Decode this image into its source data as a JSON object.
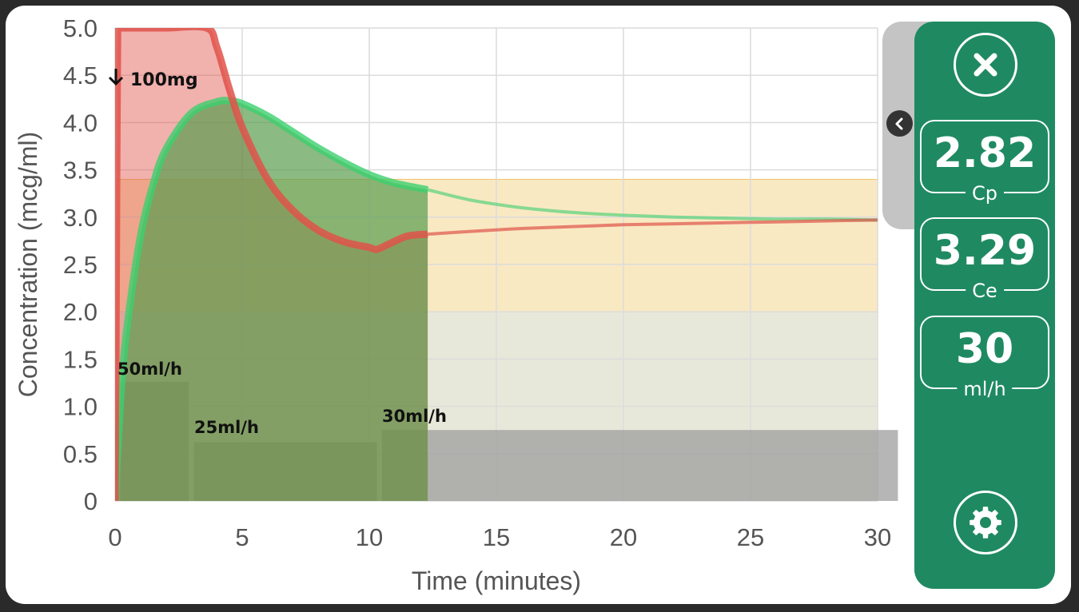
{
  "colors": {
    "plasma_line": "#e0524a",
    "effect_line": "#3ccf6e",
    "panel_green": "#1f8a62",
    "target_band": "#f6dfa8"
  },
  "chart_data": {
    "type": "area",
    "xlabel": "Time (minutes)",
    "ylabel": "Concentration (mcg/ml)",
    "xlim": [
      0,
      30
    ],
    "ylim": [
      0,
      5
    ],
    "x_ticks": [
      "0",
      "5",
      "10",
      "15",
      "20",
      "25",
      "30"
    ],
    "y_ticks": [
      "0",
      "0.5",
      "1.0",
      "1.5",
      "2.0",
      "2.5",
      "3.0",
      "3.5",
      "4.0",
      "4.5",
      "5.0"
    ],
    "grid": true,
    "annotations": {
      "bolus": "100mg",
      "rates": [
        "50ml/h",
        "25ml/h",
        "30ml/h"
      ]
    },
    "infusion_blocks": [
      {
        "x_start": 0.2,
        "x_end": 2.9,
        "value": 1.26
      },
      {
        "x_start": 3.1,
        "x_end": 10.3,
        "value": 0.62
      },
      {
        "x_start": 10.5,
        "x_end": 30.8,
        "value": 0.75
      }
    ],
    "bands": [
      {
        "y_start": 2.0,
        "y_end": 3.4,
        "color": "target"
      },
      {
        "y_start": 0,
        "y_end": 2.0,
        "color": "low"
      }
    ],
    "current_time": 12.3,
    "series": [
      {
        "name": "Cp",
        "x": [
          0,
          0.05,
          0.1,
          0.2,
          0.5,
          1,
          2,
          3.6,
          4,
          4.5,
          5,
          6,
          7,
          8,
          9,
          10,
          10.3,
          10.8,
          11.5,
          12.3,
          14,
          16,
          18,
          20,
          22,
          24,
          26,
          28,
          30
        ],
        "values": [
          0,
          2.5,
          5.0,
          5.0,
          5.0,
          5.0,
          5.0,
          5.0,
          4.8,
          4.35,
          3.95,
          3.4,
          3.07,
          2.86,
          2.74,
          2.68,
          2.66,
          2.72,
          2.8,
          2.82,
          2.85,
          2.88,
          2.9,
          2.92,
          2.93,
          2.94,
          2.95,
          2.96,
          2.97
        ]
      },
      {
        "name": "Ce",
        "x": [
          0,
          0.25,
          0.5,
          1,
          1.5,
          2,
          3,
          4,
          4.5,
          5,
          6,
          7,
          8,
          9,
          10,
          11,
          12.3,
          14,
          16,
          18,
          20,
          22,
          24,
          26,
          28,
          30
        ],
        "values": [
          0,
          1.2,
          1.9,
          2.8,
          3.35,
          3.72,
          4.1,
          4.22,
          4.23,
          4.2,
          4.07,
          3.9,
          3.73,
          3.58,
          3.45,
          3.36,
          3.29,
          3.18,
          3.1,
          3.05,
          3.02,
          3.0,
          2.99,
          2.98,
          2.98,
          2.97
        ]
      }
    ]
  },
  "panel": {
    "cp_value": "2.82",
    "cp_label": "Cp",
    "ce_value": "3.29",
    "ce_label": "Ce",
    "rate_value": "30",
    "rate_label": "ml/h",
    "close_icon": "close-icon",
    "settings_icon": "gear-icon",
    "collapse_icon": "chevron-left-icon"
  }
}
